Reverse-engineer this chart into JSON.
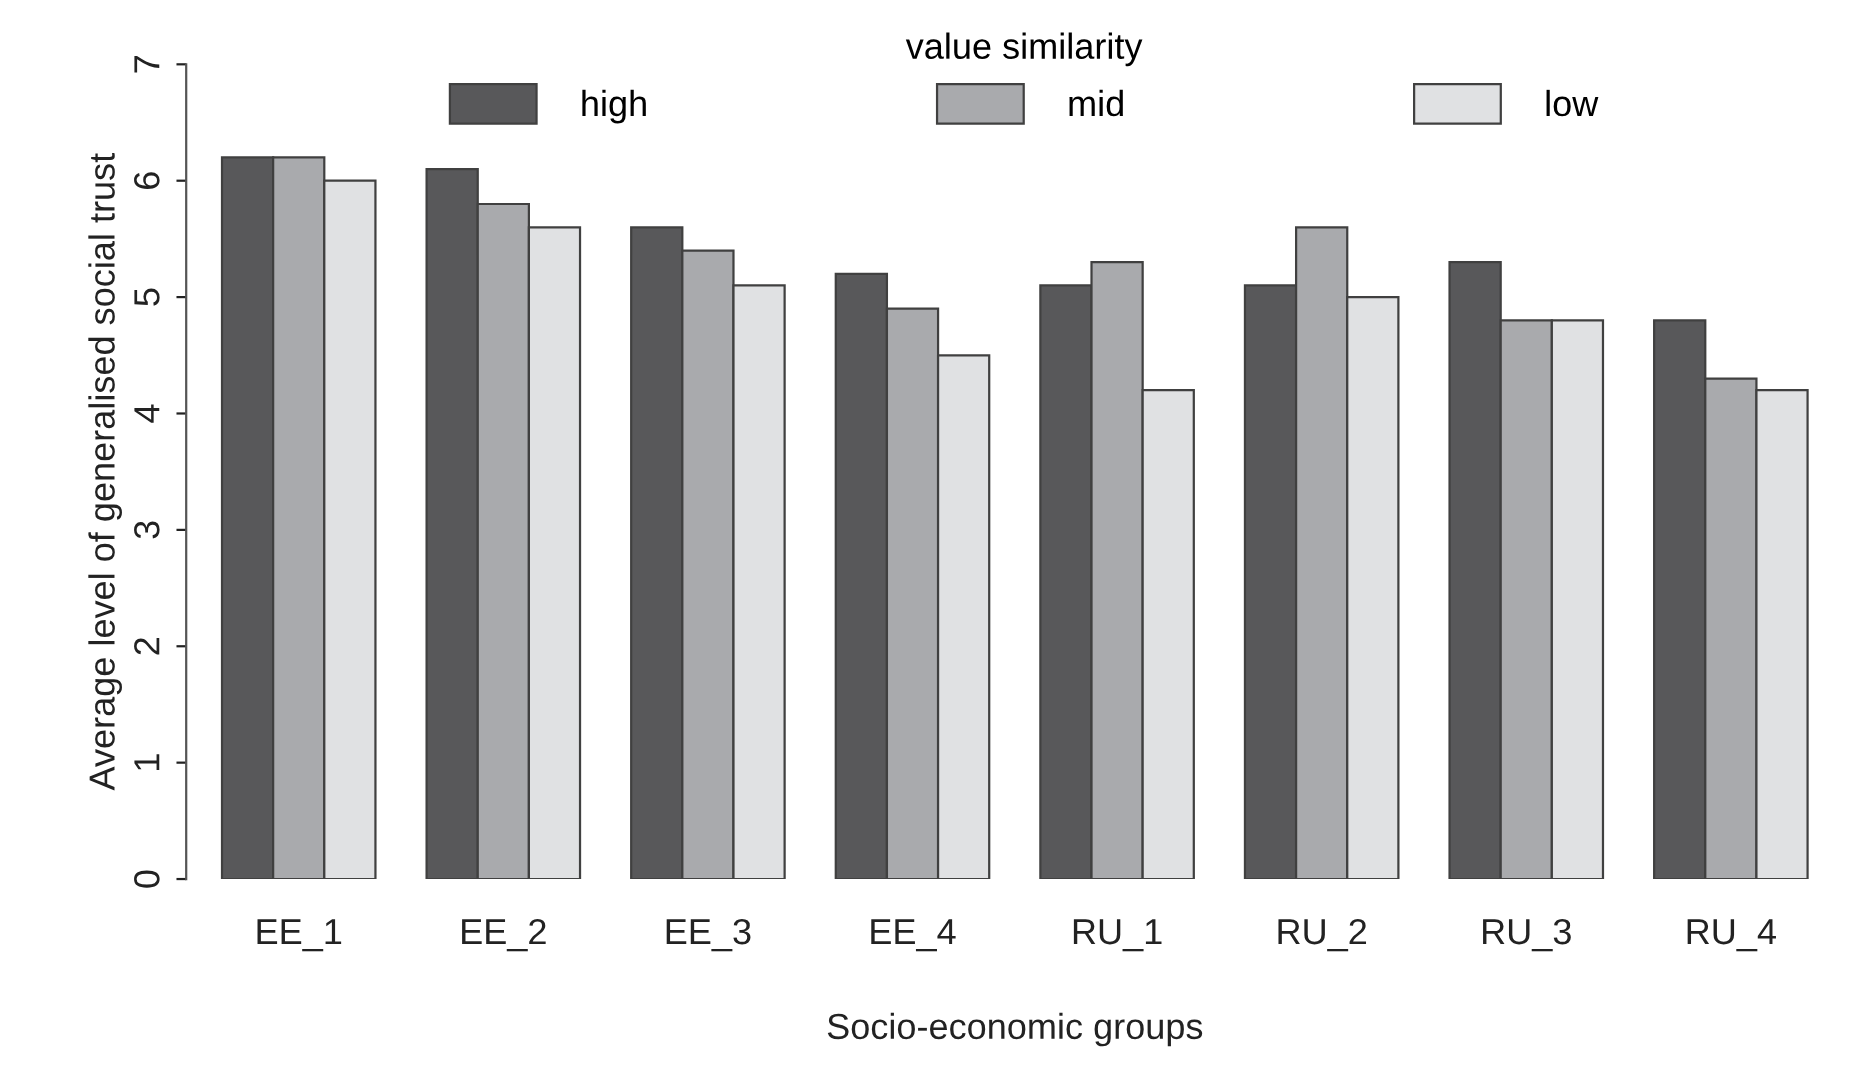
{
  "chart_data": {
    "type": "bar",
    "xlabel": "Socio-economic groups",
    "ylabel": "Average level of generalised social trust",
    "legend_title": "value similarity",
    "legend": "top",
    "categories": [
      "EE_1",
      "EE_2",
      "EE_3",
      "EE_4",
      "RU_1",
      "RU_2",
      "RU_3",
      "RU_4"
    ],
    "series": [
      {
        "name": "high",
        "color": "#58585a",
        "values": [
          6.2,
          6.1,
          5.6,
          5.2,
          5.1,
          5.1,
          5.3,
          4.8
        ]
      },
      {
        "name": "mid",
        "color": "#a9aaad",
        "values": [
          6.2,
          5.8,
          5.4,
          4.9,
          5.3,
          5.6,
          4.8,
          4.3
        ]
      },
      {
        "name": "low",
        "color": "#e0e1e3",
        "values": [
          6.0,
          5.6,
          5.1,
          4.5,
          4.2,
          5.0,
          4.8,
          4.2
        ]
      }
    ],
    "ylim": [
      0,
      7
    ],
    "yticks": [
      0,
      1,
      2,
      3,
      4,
      5,
      6,
      7
    ],
    "grid": false
  }
}
